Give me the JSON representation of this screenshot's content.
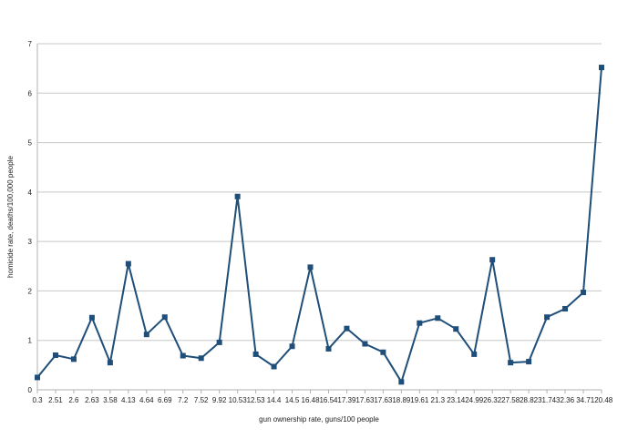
{
  "chart_data": {
    "type": "line",
    "title": "",
    "xlabel": "gun ownership rate, guns/100 people",
    "ylabel": "homicide rate, deaths/100,000 people",
    "ylim": [
      0,
      7
    ],
    "y_ticks": [
      "0",
      "1",
      "2",
      "3",
      "4",
      "5",
      "6",
      "7"
    ],
    "grid": "horizontal",
    "legend": "none",
    "colors": {
      "series": "#1f4e79",
      "marker": "#1f4e79",
      "grid": "#c8c8c8",
      "axis": "#b0b0b0"
    },
    "categories": [
      "0.3",
      "2.51",
      "2.6",
      "2.63",
      "3.58",
      "4.13",
      "4.64",
      "6.69",
      "7.2",
      "7.52",
      "9.92",
      "10.53",
      "12.53",
      "14.4",
      "14.5",
      "16.48",
      "16.54",
      "17.39",
      "17.63",
      "17.63",
      "18.89",
      "19.61",
      "21.3",
      "23.14",
      "24.99",
      "26.32",
      "27.58",
      "28.82",
      "31.74",
      "32.36",
      "34.7",
      "120.48"
    ],
    "series": [
      {
        "values": [
          0.25,
          0.7,
          0.62,
          1.46,
          0.55,
          2.55,
          1.12,
          1.47,
          0.69,
          0.64,
          0.96,
          3.91,
          0.72,
          0.47,
          0.88,
          2.48,
          0.83,
          1.24,
          0.93,
          0.76,
          0.16,
          1.35,
          1.45,
          1.23,
          0.72,
          2.63,
          0.55,
          0.57,
          1.47,
          1.64,
          1.97,
          6.52
        ]
      }
    ]
  }
}
